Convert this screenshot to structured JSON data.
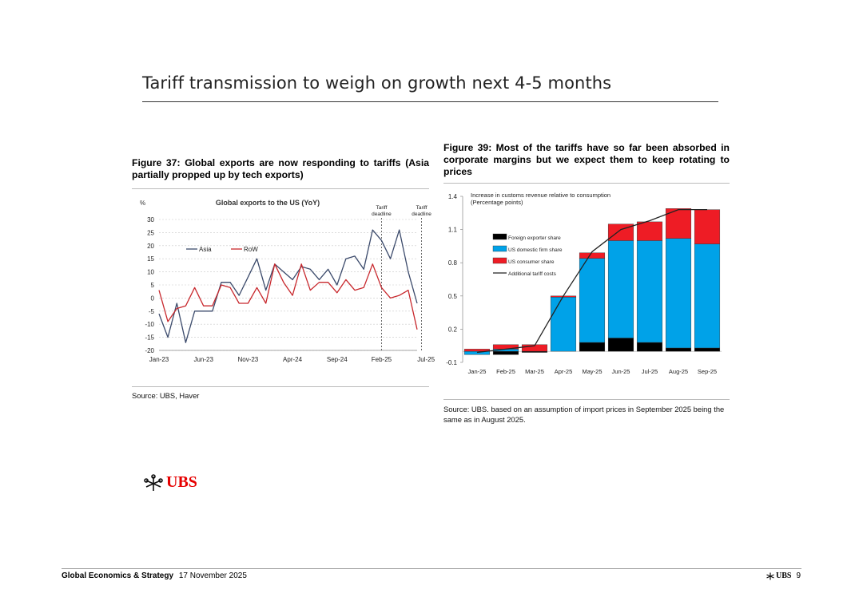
{
  "slide": {
    "title": "Tariff transmission to weigh on growth next 4-5 months"
  },
  "fig37": {
    "title": "Figure 37: Global exports are now responding to tariffs (Asia partially propped up by tech exports)",
    "source": "Source: UBS, Haver"
  },
  "fig39": {
    "title": "Figure 39: Most of the tariffs have so far been absorbed in corporate margins but we expect them to keep rotating to prices",
    "source": "Source: UBS. based on an assumption of import prices in September 2025 being the same as in August 2025."
  },
  "footer": {
    "section": "Global Economics & Strategy",
    "date": "17 November 2025",
    "brand": "UBS",
    "page": "9"
  },
  "brand": {
    "name": "UBS",
    "color": "#e60000"
  },
  "chart_data": [
    {
      "type": "line",
      "title": "Global exports to the US (YoY)",
      "ylabel": "%",
      "ylim": [
        -20,
        30
      ],
      "yticks": [
        30,
        25,
        20,
        15,
        10,
        5,
        0,
        -5,
        -10,
        -15,
        -20
      ],
      "x_ticks": [
        "Jan-23",
        "Jun-23",
        "Nov-23",
        "Apr-24",
        "Sep-24",
        "Feb-25",
        "Jul-25"
      ],
      "x_tick_index": [
        0,
        5,
        10,
        15,
        20,
        25,
        30
      ],
      "legend": [
        "Asia",
        "RoW"
      ],
      "annotations": [
        {
          "index": 25,
          "label": "Tariff deadline"
        },
        {
          "index": 29.5,
          "label": "Tariff deadline"
        }
      ],
      "series": [
        {
          "name": "Asia",
          "color": "#3b4a6b",
          "values": [
            -6,
            -15,
            -2,
            -17,
            -5,
            -5,
            -5,
            6,
            6,
            1,
            8,
            15,
            3,
            13,
            10,
            7,
            12,
            11,
            7,
            11,
            5,
            15,
            16,
            11,
            26,
            22,
            15,
            26,
            10,
            -2
          ]
        },
        {
          "name": "RoW",
          "color": "#c8282d",
          "values": [
            3,
            -9,
            -4,
            -3,
            4,
            -3,
            -3,
            5,
            4,
            -2,
            -2,
            4,
            -2,
            13,
            6,
            1,
            13,
            3,
            6,
            6,
            2,
            7,
            3,
            4,
            13,
            4,
            0,
            1,
            3,
            -12
          ]
        }
      ]
    },
    {
      "type": "bar",
      "stacked": true,
      "subtitle": "Increase in customs revenue relative to consumption (Percentage points)",
      "ylim": [
        -0.1,
        1.4
      ],
      "yticks": [
        1.4,
        1.1,
        0.8,
        0.5,
        0.2,
        -0.1
      ],
      "categories": [
        "Jan-25",
        "Feb-25",
        "Mar-25",
        "Apr-25",
        "May-25",
        "Jun-25",
        "Jul-25",
        "Aug-25",
        "Sep-25"
      ],
      "series": [
        {
          "name": "Foreign exporter share",
          "color": "#000000",
          "values": [
            0.0,
            -0.03,
            -0.01,
            0.0,
            0.08,
            0.12,
            0.08,
            0.03,
            0.03
          ]
        },
        {
          "name": "US domestic firm share",
          "color": "#00a2e8",
          "values": [
            -0.03,
            0.02,
            0.0,
            0.49,
            0.76,
            0.88,
            0.92,
            0.99,
            0.94
          ]
        },
        {
          "name": "US consumer share",
          "color": "#ee1c25",
          "values": [
            0.02,
            0.04,
            0.06,
            0.01,
            0.05,
            0.15,
            0.17,
            0.27,
            0.31
          ]
        }
      ],
      "line": {
        "name": "Additional tariff costs",
        "color": "#222222",
        "values": [
          -0.01,
          0.02,
          0.05,
          0.5,
          0.9,
          1.1,
          1.18,
          1.28,
          1.28
        ]
      }
    }
  ]
}
